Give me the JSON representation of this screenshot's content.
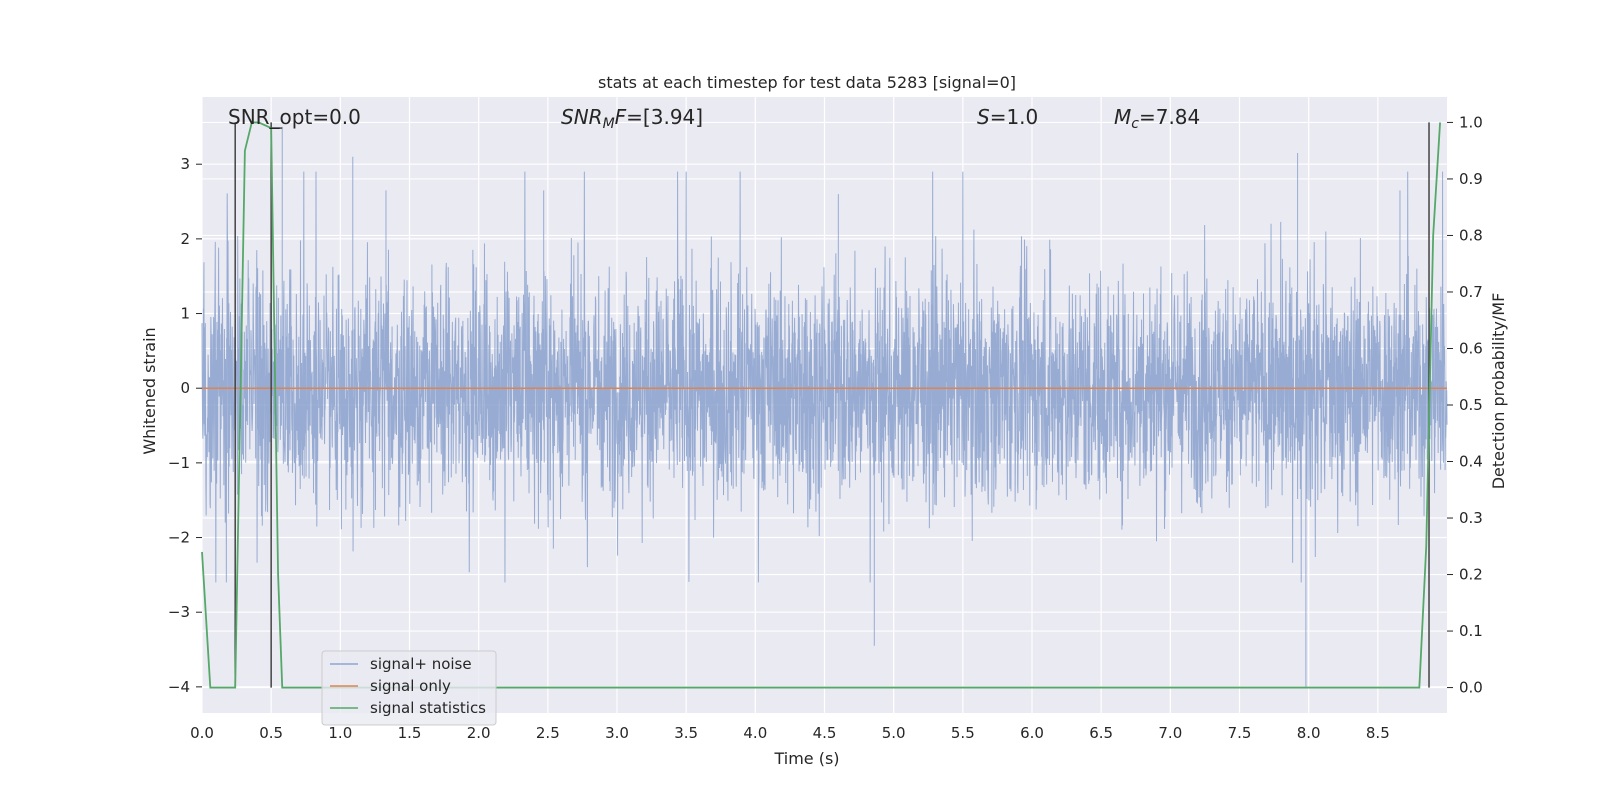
{
  "chart_data": {
    "type": "line",
    "title": "stats at each timestep for test data 5283 [signal=0]",
    "xlabel": "Time (s)",
    "ylabel": "Whitened strain",
    "y2label": "Detection probability/MF",
    "xlim": [
      0.0,
      9.0
    ],
    "ylim": [
      -4.35,
      3.9
    ],
    "y2lim": [
      -0.045,
      1.045
    ],
    "xticks": [
      "0.0",
      "0.5",
      "1.0",
      "1.5",
      "2.0",
      "2.5",
      "3.0",
      "3.5",
      "4.0",
      "4.5",
      "5.0",
      "5.5",
      "6.0",
      "6.5",
      "7.0",
      "7.5",
      "8.0",
      "8.5"
    ],
    "yticks": [
      "−4",
      "−3",
      "−2",
      "−1",
      "0",
      "1",
      "2",
      "3"
    ],
    "y2ticks": [
      "0.0",
      "0.1",
      "0.2",
      "0.3",
      "0.4",
      "0.5",
      "0.6",
      "0.7",
      "0.8",
      "0.9",
      "1.0"
    ],
    "grid": true,
    "legend_position": "lower-left",
    "annotations": {
      "snr_opt": "SNR_opt=0.0",
      "snr_mf": "SNR_MF=[3.94]",
      "s": "S=1.0",
      "mc": "M_c=7.84"
    },
    "series": [
      {
        "name": "signal+ noise",
        "color": "#8fa5cf",
        "style": "dense noise, roughly symmetric about 0, mostly within ±1.3 with spikes",
        "spikes": [
          {
            "x": 0.58,
            "y": 3.5
          },
          {
            "x": 1.09,
            "y": 3.1
          },
          {
            "x": 7.92,
            "y": 3.15
          },
          {
            "x": 4.86,
            "y": -3.45
          },
          {
            "x": 7.98,
            "y": -4.0
          },
          {
            "x": 2.47,
            "y": 2.65
          },
          {
            "x": 8.66,
            "y": 2.65
          },
          {
            "x": 1.33,
            "y": 2.65
          },
          {
            "x": 4.6,
            "y": 2.6
          }
        ]
      },
      {
        "name": "signal only",
        "color": "#dd8452",
        "x": [
          0.0,
          9.0
        ],
        "y": [
          0.0,
          0.0
        ]
      },
      {
        "name": "signal statistics",
        "color": "#55a868",
        "axis": "right",
        "x": [
          0.0,
          0.06,
          0.24,
          0.31,
          0.36,
          0.41,
          0.5,
          0.55,
          0.58,
          0.7,
          1.0,
          8.8,
          8.85,
          8.9,
          8.95
        ],
        "y": [
          0.24,
          0.0,
          0.0,
          0.95,
          1.0,
          1.0,
          0.99,
          0.2,
          0.0,
          0.0,
          0.0,
          0.0,
          0.25,
          0.8,
          1.0
        ]
      }
    ],
    "markers": {
      "color": "#444444",
      "vlines": [
        0.24,
        0.5,
        8.87
      ]
    }
  },
  "legend": {
    "items": [
      "signal+ noise",
      "signal only",
      "signal statistics"
    ]
  }
}
